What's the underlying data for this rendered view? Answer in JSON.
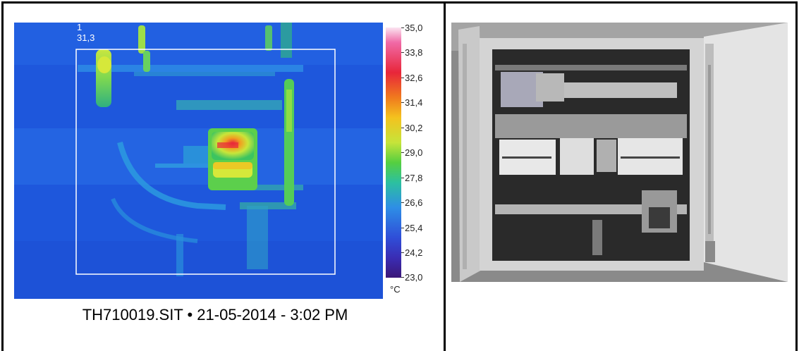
{
  "thermal": {
    "marker_index": "1",
    "marker_value": "31,3",
    "scale": {
      "labels": [
        "35,0",
        "33,8",
        "32,6",
        "31,4",
        "30,2",
        "29,0",
        "27,8",
        "26,6",
        "25,4",
        "24,2",
        "23,0"
      ],
      "unit": "°C"
    },
    "caption": "TH710019.SIT • 21-05-2014 - 3:02 PM"
  },
  "colors": {
    "thermal_background": "#1f5ce0",
    "hotspot": "#e8263a"
  }
}
